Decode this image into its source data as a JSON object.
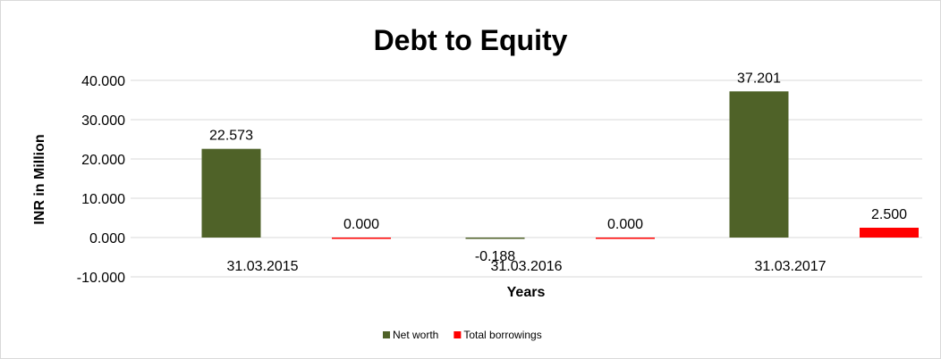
{
  "chart_data": {
    "type": "bar",
    "title": "Debt to Equity",
    "xlabel": "Years",
    "ylabel": "INR in Million",
    "categories": [
      "31.03.2015",
      "31.03.2016",
      "31.03.2017"
    ],
    "series": [
      {
        "name": "Net worth",
        "color": "#4f6228",
        "values": [
          22.573,
          -0.188,
          37.201
        ],
        "labels": [
          "22.573",
          "-0.188",
          "37.201"
        ]
      },
      {
        "name": "Total borrowings",
        "color": "#ff0000",
        "values": [
          0.0,
          0.0,
          2.5
        ],
        "labels": [
          "0.000",
          "0.000",
          "2.500"
        ]
      }
    ],
    "ylim": [
      -10,
      40
    ],
    "yticks": [
      "-10.000",
      "0.000",
      "10.000",
      "20.000",
      "30.000",
      "40.000"
    ],
    "grid": true,
    "legend": "bottom"
  }
}
